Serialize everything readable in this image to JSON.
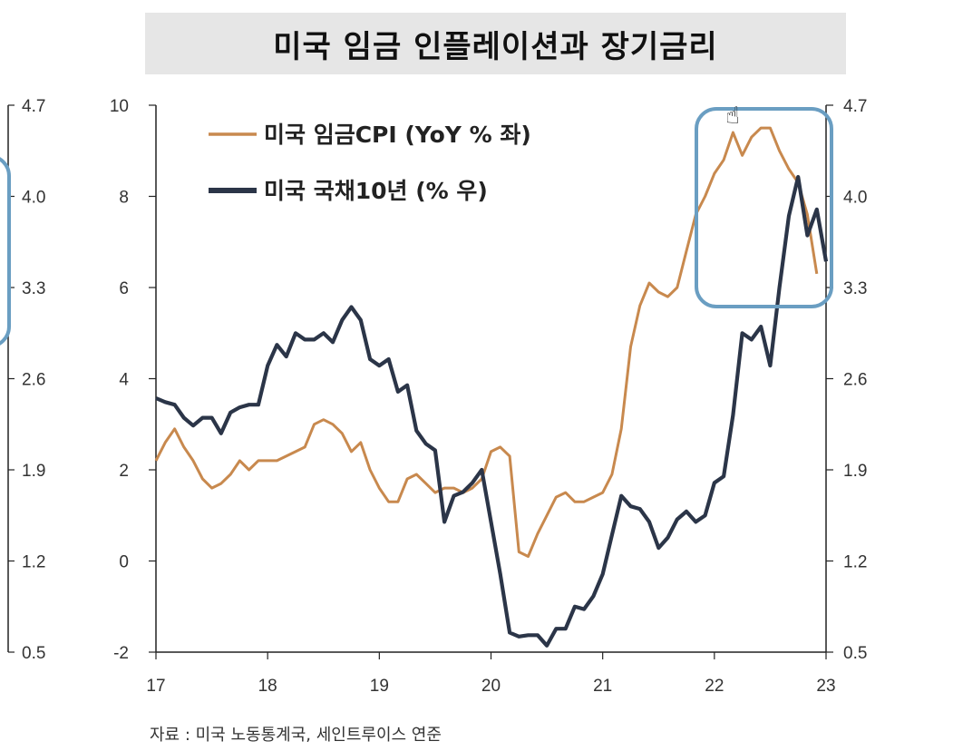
{
  "title": "미국 임금 인플레이션과 장기금리",
  "source": "자료 :  미국 노동통계국, 세인트루이스 연준",
  "colors": {
    "cpi": "#c8894e",
    "treasury": "#2b3548",
    "highlight": "#6a9ec2",
    "negative_tick": "#c00000"
  },
  "chart_data": {
    "type": "line",
    "title": "미국 임금 인플레이션과 장기금리",
    "x_ticks": [
      "17",
      "18",
      "19",
      "20",
      "21",
      "22",
      "23"
    ],
    "y_left": {
      "ylim": [
        -2,
        10
      ],
      "ticks": [
        "-2",
        "0",
        "2",
        "4",
        "6",
        "8",
        "10"
      ]
    },
    "y_right": {
      "ylim": [
        0.5,
        4.7
      ],
      "ticks": [
        "0.5",
        "1.2",
        "1.9",
        "2.6",
        "3.3",
        "4.0",
        "4.7"
      ]
    },
    "legend_position": "top-left",
    "series": [
      {
        "name": "미국 임금CPI (YoY % 좌)",
        "axis": "left",
        "x": [
          2017.0,
          2017.083,
          2017.167,
          2017.25,
          2017.333,
          2017.417,
          2017.5,
          2017.583,
          2017.667,
          2017.75,
          2017.833,
          2017.917,
          2018.0,
          2018.083,
          2018.167,
          2018.25,
          2018.333,
          2018.417,
          2018.5,
          2018.583,
          2018.667,
          2018.75,
          2018.833,
          2018.917,
          2019.0,
          2019.083,
          2019.167,
          2019.25,
          2019.333,
          2019.417,
          2019.5,
          2019.583,
          2019.667,
          2019.75,
          2019.833,
          2019.917,
          2020.0,
          2020.083,
          2020.167,
          2020.25,
          2020.333,
          2020.417,
          2020.5,
          2020.583,
          2020.667,
          2020.75,
          2020.833,
          2020.917,
          2021.0,
          2021.083,
          2021.167,
          2021.25,
          2021.333,
          2021.417,
          2021.5,
          2021.583,
          2021.667,
          2021.75,
          2021.833,
          2021.917,
          2022.0,
          2022.083,
          2022.167,
          2022.25,
          2022.333,
          2022.417,
          2022.5,
          2022.583,
          2022.667,
          2022.75,
          2022.833,
          2022.917
        ],
        "values": [
          2.2,
          2.6,
          2.9,
          2.5,
          2.2,
          1.8,
          1.6,
          1.7,
          1.9,
          2.2,
          2.0,
          2.2,
          2.2,
          2.2,
          2.3,
          2.4,
          2.5,
          3.0,
          3.1,
          3.0,
          2.8,
          2.4,
          2.6,
          2.0,
          1.6,
          1.3,
          1.3,
          1.8,
          1.9,
          1.7,
          1.5,
          1.6,
          1.6,
          1.5,
          1.6,
          1.8,
          2.4,
          2.5,
          2.3,
          0.2,
          0.1,
          0.6,
          1.0,
          1.4,
          1.5,
          1.3,
          1.3,
          1.4,
          1.5,
          1.9,
          2.9,
          4.7,
          5.6,
          6.1,
          5.9,
          5.8,
          6.0,
          6.8,
          7.6,
          8.0,
          8.5,
          8.8,
          9.4,
          8.9,
          9.3,
          9.5,
          9.5,
          9.0,
          8.6,
          8.3,
          7.6,
          6.3
        ]
      },
      {
        "name": "미국 국채10년 (% 우)",
        "axis": "right",
        "x": [
          2017.0,
          2017.083,
          2017.167,
          2017.25,
          2017.333,
          2017.417,
          2017.5,
          2017.583,
          2017.667,
          2017.75,
          2017.833,
          2017.917,
          2018.0,
          2018.083,
          2018.167,
          2018.25,
          2018.333,
          2018.417,
          2018.5,
          2018.583,
          2018.667,
          2018.75,
          2018.833,
          2018.917,
          2019.0,
          2019.083,
          2019.167,
          2019.25,
          2019.333,
          2019.417,
          2019.5,
          2019.583,
          2019.667,
          2019.75,
          2019.833,
          2019.917,
          2020.0,
          2020.083,
          2020.167,
          2020.25,
          2020.333,
          2020.417,
          2020.5,
          2020.583,
          2020.667,
          2020.75,
          2020.833,
          2020.917,
          2021.0,
          2021.083,
          2021.167,
          2021.25,
          2021.333,
          2021.417,
          2021.5,
          2021.583,
          2021.667,
          2021.75,
          2021.833,
          2021.917,
          2022.0,
          2022.083,
          2022.167,
          2022.25,
          2022.333,
          2022.417,
          2022.5,
          2022.583,
          2022.667,
          2022.75,
          2022.833,
          2022.917,
          2023.0
        ],
        "values": [
          2.45,
          2.42,
          2.4,
          2.3,
          2.24,
          2.3,
          2.3,
          2.18,
          2.34,
          2.38,
          2.4,
          2.4,
          2.7,
          2.86,
          2.77,
          2.95,
          2.9,
          2.9,
          2.95,
          2.88,
          3.05,
          3.15,
          3.05,
          2.75,
          2.7,
          2.75,
          2.5,
          2.55,
          2.2,
          2.1,
          2.05,
          1.5,
          1.7,
          1.73,
          1.8,
          1.9,
          1.5,
          1.1,
          0.65,
          0.62,
          0.63,
          0.63,
          0.55,
          0.68,
          0.68,
          0.85,
          0.83,
          0.93,
          1.1,
          1.4,
          1.7,
          1.62,
          1.6,
          1.5,
          1.3,
          1.38,
          1.52,
          1.58,
          1.5,
          1.55,
          1.8,
          1.85,
          2.32,
          2.95,
          2.9,
          3.0,
          2.7,
          3.3,
          3.85,
          4.15,
          3.7,
          3.9,
          3.5
        ]
      }
    ]
  }
}
